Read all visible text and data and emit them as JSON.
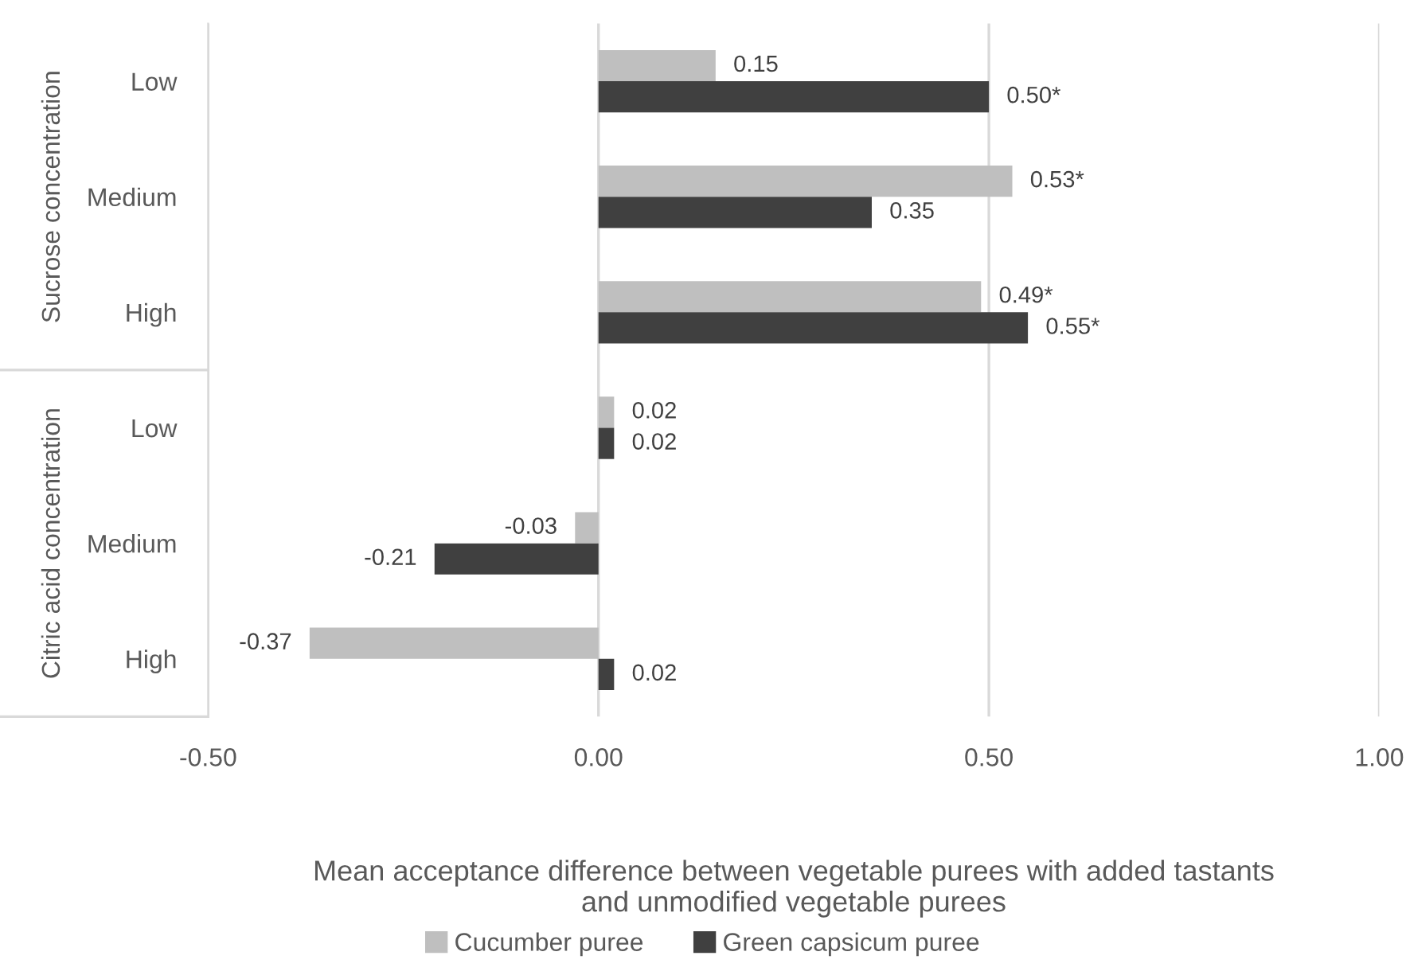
{
  "chart_data": {
    "type": "bar",
    "orientation": "horizontal",
    "categories": [
      "Low",
      "Medium",
      "High",
      "Low",
      "Medium",
      "High"
    ],
    "series": [
      {
        "name": "Cucumber puree",
        "color": "#bfbfbf",
        "values": [
          0.15,
          0.53,
          0.49,
          0.02,
          -0.03,
          -0.37
        ],
        "value_labels": [
          "0.15",
          "0.53*",
          "0.49*",
          "0.02",
          "-0.03",
          "-0.37"
        ]
      },
      {
        "name": "Green capsicum puree",
        "color": "#404040",
        "values": [
          0.5,
          0.35,
          0.55,
          0.02,
          -0.21,
          0.02
        ],
        "value_labels": [
          "0.50*",
          "0.35",
          "0.55*",
          "0.02",
          "-0.21",
          "0.02"
        ]
      }
    ],
    "xlim": [
      -0.5,
      1.0
    ],
    "xticks": [
      {
        "value": -0.5,
        "label": "-0.50"
      },
      {
        "value": 0,
        "label": "0.00"
      },
      {
        "value": 0.5,
        "label": "0.50"
      },
      {
        "value": 1.0,
        "label": "1.00"
      }
    ],
    "xlabel": "Mean acceptance difference between vegetable purees with added tastants\nand unmodified vegetable purees",
    "annotations": [
      "Sucrose concentration",
      "Citric acid concentration"
    ],
    "grid": "x",
    "legend": "bottom"
  }
}
